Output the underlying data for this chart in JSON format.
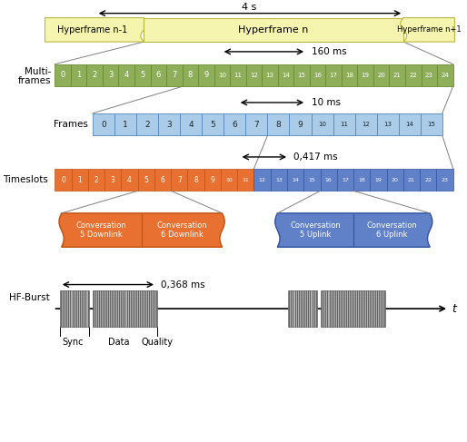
{
  "hyperframe_color": "#f5f5b0",
  "hyperframe_edge": "#b8b840",
  "multiframe_color": "#8fae5a",
  "multiframe_edge": "#6a8a30",
  "frame_color": "#aacce8",
  "frame_edge": "#5588bb",
  "timeslot_orange": "#e87030",
  "timeslot_orange_edge": "#c05010",
  "timeslot_blue": "#6080c8",
  "timeslot_blue_edge": "#3050a0",
  "conv_orange": "#e87030",
  "conv_blue": "#6080c8",
  "bg_color": "#ffffff",
  "multiframe_labels": [
    "0",
    "1",
    "2",
    "3",
    "4",
    "5",
    "6",
    "7",
    "8",
    "9",
    "10",
    "11",
    "12",
    "13",
    "14",
    "15",
    "16",
    "17",
    "18",
    "19",
    "20",
    "21",
    "22",
    "23",
    "24"
  ],
  "frame_labels": [
    "0",
    "1",
    "2",
    "3",
    "4",
    "5",
    "6",
    "7",
    "8",
    "9",
    "10",
    "11",
    "12",
    "13",
    "14",
    "15"
  ],
  "timeslot_labels": [
    "0",
    "1",
    "2",
    "3",
    "4",
    "5",
    "6",
    "7",
    "8",
    "9",
    "10",
    "11",
    "12",
    "13",
    "14",
    "15",
    "16",
    "17",
    "18",
    "19",
    "20",
    "21",
    "22",
    "23"
  ]
}
